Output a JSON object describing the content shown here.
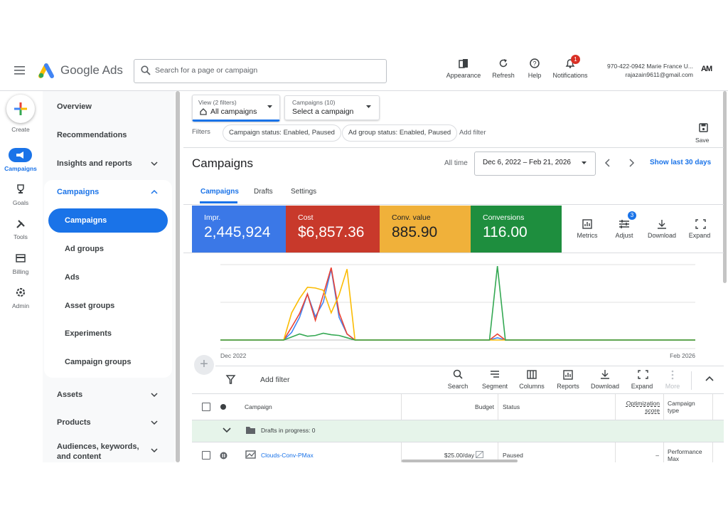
{
  "header": {
    "product": "Google Ads",
    "search_placeholder": "Search for a page or campaign",
    "actions": [
      "Appearance",
      "Refresh",
      "Help",
      "Notifications"
    ],
    "notification_count": "1",
    "account": {
      "line1": "970-422-0942 Marie France U...",
      "email": "rajazain9611@gmail.com",
      "avatar": "AM"
    }
  },
  "rail": [
    "Create",
    "Campaigns",
    "Goals",
    "Tools",
    "Billing",
    "Admin"
  ],
  "nav": {
    "top": [
      "Overview",
      "Recommendations",
      "Insights and reports"
    ],
    "section": "Campaigns",
    "section_items": [
      "Campaigns",
      "Ad groups",
      "Ads",
      "Asset groups",
      "Experiments",
      "Campaign groups"
    ],
    "bottom": [
      "Assets",
      "Products",
      "Audiences, keywords, and content"
    ]
  },
  "filters": {
    "view_label": "View (2 filters)",
    "view_value": "All campaigns",
    "campaign_label": "Campaigns (10)",
    "campaign_value": "Select a campaign",
    "label": "Filters",
    "chips": [
      "Campaign status: Enabled, Paused",
      "Ad group status: Enabled, Paused"
    ],
    "add": "Add filter",
    "save": "Save"
  },
  "page": {
    "title": "Campaigns",
    "range_label": "All time",
    "date_range": "Dec 6, 2022 – Feb 21, 2026",
    "quick_range": "Show last 30 days",
    "tabs": [
      "Campaigns",
      "Drafts",
      "Settings"
    ]
  },
  "metrics": [
    {
      "label": "Impr.",
      "value": "2,445,924",
      "color": "#3b78e7",
      "text_color": "#ffffff"
    },
    {
      "label": "Cost",
      "value": "$6,857.36",
      "color": "#c8392b",
      "text_color": "#ffffff"
    },
    {
      "label": "Conv. value",
      "value": "885.90",
      "color": "#f0b13a",
      "text_color": "#202124"
    },
    {
      "label": "Conversions",
      "value": "116.00",
      "color": "#1e8e3e",
      "text_color": "#ffffff"
    }
  ],
  "metric_tools": [
    "Metrics",
    "Adjust",
    "Download",
    "Expand"
  ],
  "metric_tools_badge": "3",
  "chart": {
    "type": "line",
    "x_labels": [
      "Dec 2022",
      "Feb 2026"
    ],
    "x": [
      0,
      8,
      9,
      10,
      11,
      12,
      13,
      14,
      15,
      16,
      17,
      34,
      35,
      36,
      60
    ],
    "xlim": [
      0,
      60
    ],
    "ylim": [
      0,
      100
    ],
    "series": [
      {
        "color": "#4285f4",
        "values": [
          0,
          0,
          10,
          30,
          61,
          31,
          50,
          94,
          30,
          8,
          0,
          0,
          3,
          0,
          0
        ]
      },
      {
        "color": "#ea4335",
        "values": [
          0,
          0,
          17,
          35,
          61,
          26,
          60,
          96,
          36,
          8,
          0,
          0,
          8,
          0,
          0
        ]
      },
      {
        "color": "#fbbc04",
        "values": [
          0,
          0,
          36,
          55,
          70,
          69,
          66,
          36,
          60,
          94,
          0,
          0,
          0,
          0,
          0
        ]
      },
      {
        "color": "#34a853",
        "values": [
          0,
          0,
          4,
          8,
          5,
          6,
          9,
          7,
          6,
          3,
          0,
          0,
          98,
          0,
          0
        ]
      }
    ]
  },
  "table": {
    "add_filter": "Add filter",
    "tools": [
      "Search",
      "Segment",
      "Columns",
      "Reports",
      "Download",
      "Expand",
      "More"
    ],
    "columns": [
      "Campaign",
      "Budget",
      "Status",
      "Optimization score",
      "Campaign type"
    ],
    "drafts": "Drafts in progress: 0",
    "rows": [
      [
        "Clouds-Conv-PMax",
        "$25.00/day",
        "Paused",
        "–",
        "Performance Max"
      ]
    ]
  }
}
